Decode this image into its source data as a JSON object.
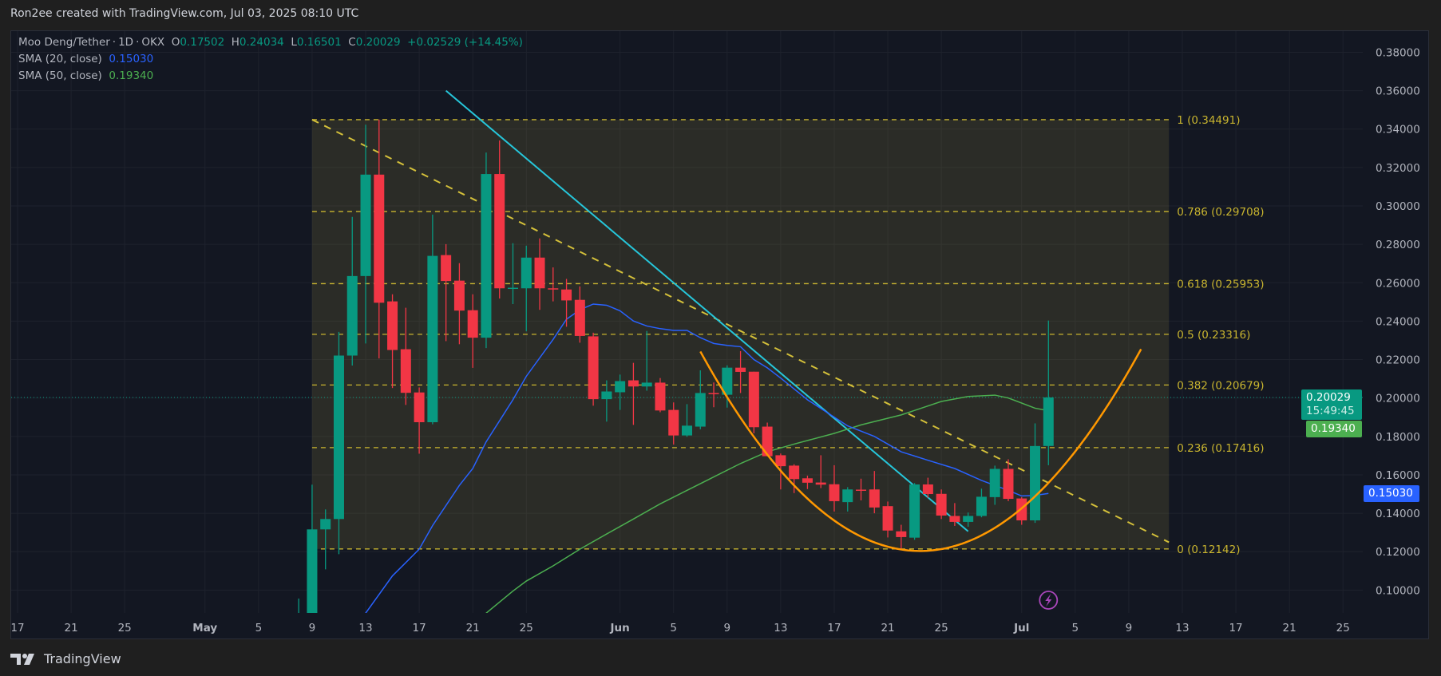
{
  "header": {
    "credit": "Ron2ee created with TradingView.com, Jul 03, 2025 08:10 UTC"
  },
  "legend": {
    "symbol": "Moo Deng/Tether",
    "interval": "1D",
    "exchange": "OKX",
    "open_label": "O",
    "open": "0.17502",
    "high_label": "H",
    "high": "0.24034",
    "low_label": "L",
    "low": "0.16501",
    "close_label": "C",
    "close": "0.20029",
    "change": "+0.02529 (+14.45%)",
    "sma20_label": "SMA (20, close)",
    "sma20_value": "0.15030",
    "sma50_label": "SMA (50, close)",
    "sma50_value": "0.19340"
  },
  "badges": {
    "last_price": "0.20029",
    "countdown": "15:49:45",
    "sma50": "0.19340",
    "sma20": "0.15030"
  },
  "branding": {
    "logo_text": "TradingView"
  },
  "colors": {
    "up": "#089981",
    "down": "#f23645",
    "sma20": "#2962ff",
    "sma50": "#4caf50",
    "trendline": "#26c6da",
    "curve": "#ff9800",
    "fib": "#c9b52f",
    "background": "#131722"
  },
  "icons": {
    "event": "lightning-icon",
    "logo": "tradingview-logo-icon"
  },
  "chart_data": {
    "type": "candlestick",
    "ylim": [
      0.0881,
      0.391
    ],
    "grid": true,
    "price_ticks": [
      "0.38000",
      "0.36000",
      "0.34000",
      "0.32000",
      "0.30000",
      "0.28000",
      "0.26000",
      "0.24000",
      "0.22000",
      "0.20000",
      "0.18000",
      "0.16000",
      "0.14000",
      "0.12000",
      "0.10000"
    ],
    "time_ticks": [
      {
        "label": "17",
        "date": "2025-04-17"
      },
      {
        "label": "21",
        "date": "2025-04-21"
      },
      {
        "label": "25",
        "date": "2025-04-25"
      },
      {
        "label": "May",
        "date": "2025-05-01",
        "month": true
      },
      {
        "label": "5",
        "date": "2025-05-05"
      },
      {
        "label": "9",
        "date": "2025-05-09"
      },
      {
        "label": "13",
        "date": "2025-05-13"
      },
      {
        "label": "17",
        "date": "2025-05-17"
      },
      {
        "label": "21",
        "date": "2025-05-21"
      },
      {
        "label": "25",
        "date": "2025-05-25"
      },
      {
        "label": "Jun",
        "date": "2025-06-01",
        "month": true
      },
      {
        "label": "5",
        "date": "2025-06-05"
      },
      {
        "label": "9",
        "date": "2025-06-09"
      },
      {
        "label": "13",
        "date": "2025-06-13"
      },
      {
        "label": "17",
        "date": "2025-06-17"
      },
      {
        "label": "21",
        "date": "2025-06-21"
      },
      {
        "label": "25",
        "date": "2025-06-25"
      },
      {
        "label": "Jul",
        "date": "2025-07-01",
        "month": true
      },
      {
        "label": "5",
        "date": "2025-07-05"
      },
      {
        "label": "9",
        "date": "2025-07-09"
      },
      {
        "label": "13",
        "date": "2025-07-13"
      },
      {
        "label": "17",
        "date": "2025-07-17"
      },
      {
        "label": "21",
        "date": "2025-07-21"
      },
      {
        "label": "25",
        "date": "2025-07-25"
      }
    ],
    "columns": [
      "date",
      "open",
      "high",
      "low",
      "close"
    ],
    "candles": [
      [
        "2025-05-08",
        0.075,
        0.0956,
        0.07,
        0.08
      ],
      [
        "2025-05-09",
        0.08,
        0.1549,
        0.075,
        0.1316
      ],
      [
        "2025-05-10",
        0.1316,
        0.142,
        0.1108,
        0.137
      ],
      [
        "2025-05-11",
        0.137,
        0.2344,
        0.1187,
        0.2221
      ],
      [
        "2025-05-12",
        0.2221,
        0.2943,
        0.2169,
        0.2635
      ],
      [
        "2025-05-13",
        0.2635,
        0.3423,
        0.2284,
        0.3163
      ],
      [
        "2025-05-14",
        0.3163,
        0.345,
        0.2206,
        0.2496
      ],
      [
        "2025-05-15",
        0.2503,
        0.254,
        0.2052,
        0.225
      ],
      [
        "2025-05-16",
        0.2254,
        0.247,
        0.1964,
        0.2027
      ],
      [
        "2025-05-17",
        0.2029,
        0.2055,
        0.171,
        0.1874
      ],
      [
        "2025-05-18",
        0.1874,
        0.2955,
        0.1863,
        0.274
      ],
      [
        "2025-05-19",
        0.2744,
        0.2801,
        0.2296,
        0.2609
      ],
      [
        "2025-05-20",
        0.2611,
        0.2702,
        0.228,
        0.2455
      ],
      [
        "2025-05-21",
        0.2457,
        0.254,
        0.2157,
        0.2314
      ],
      [
        "2025-05-22",
        0.2314,
        0.3278,
        0.226,
        0.3166
      ],
      [
        "2025-05-23",
        0.3166,
        0.3341,
        0.2518,
        0.2571
      ],
      [
        "2025-05-24",
        0.2571,
        0.2806,
        0.2489,
        0.2574
      ],
      [
        "2025-05-25",
        0.2571,
        0.2793,
        0.2347,
        0.2731
      ],
      [
        "2025-05-26",
        0.2731,
        0.2831,
        0.2459,
        0.2571
      ],
      [
        "2025-05-27",
        0.2571,
        0.268,
        0.2503,
        0.2565
      ],
      [
        "2025-05-28",
        0.2565,
        0.262,
        0.2371,
        0.2508
      ],
      [
        "2025-05-29",
        0.2511,
        0.2581,
        0.2288,
        0.2323
      ],
      [
        "2025-05-30",
        0.2321,
        0.234,
        0.196,
        0.1994
      ],
      [
        "2025-05-31",
        0.1994,
        0.2092,
        0.1877,
        0.2034
      ],
      [
        "2025-06-01",
        0.203,
        0.2122,
        0.1938,
        0.2088
      ],
      [
        "2025-06-02",
        0.2092,
        0.2183,
        0.186,
        0.206
      ],
      [
        "2025-06-03",
        0.206,
        0.2349,
        0.2038,
        0.208
      ],
      [
        "2025-06-04",
        0.208,
        0.2104,
        0.1926,
        0.1935
      ],
      [
        "2025-06-05",
        0.1938,
        0.1977,
        0.1758,
        0.1805
      ],
      [
        "2025-06-06",
        0.1805,
        0.1968,
        0.1798,
        0.1856
      ],
      [
        "2025-06-07",
        0.1851,
        0.2144,
        0.1837,
        0.2026
      ],
      [
        "2025-06-08",
        0.2026,
        0.2081,
        0.1952,
        0.2024
      ],
      [
        "2025-06-09",
        0.2017,
        0.217,
        0.195,
        0.2158
      ],
      [
        "2025-06-10",
        0.2158,
        0.2244,
        0.2026,
        0.2136
      ],
      [
        "2025-06-11",
        0.2137,
        0.2137,
        0.1816,
        0.1848
      ],
      [
        "2025-06-12",
        0.1851,
        0.1872,
        0.1697,
        0.1697
      ],
      [
        "2025-06-13",
        0.1702,
        0.1711,
        0.1524,
        0.1645
      ],
      [
        "2025-06-14",
        0.1648,
        0.1655,
        0.1505,
        0.1578
      ],
      [
        "2025-06-15",
        0.1582,
        0.1596,
        0.1526,
        0.1559
      ],
      [
        "2025-06-16",
        0.156,
        0.1702,
        0.1531,
        0.1549
      ],
      [
        "2025-06-17",
        0.1551,
        0.165,
        0.1409,
        0.1463
      ],
      [
        "2025-06-18",
        0.1458,
        0.1536,
        0.1409,
        0.1524
      ],
      [
        "2025-06-19",
        0.1523,
        0.158,
        0.1467,
        0.1522
      ],
      [
        "2025-06-20",
        0.1524,
        0.162,
        0.14,
        0.143
      ],
      [
        "2025-06-21",
        0.1437,
        0.1461,
        0.1274,
        0.131
      ],
      [
        "2025-06-22",
        0.1306,
        0.134,
        0.1213,
        0.1276
      ],
      [
        "2025-06-23",
        0.1273,
        0.1557,
        0.1262,
        0.155
      ],
      [
        "2025-06-24",
        0.155,
        0.1585,
        0.148,
        0.15
      ],
      [
        "2025-06-25",
        0.1501,
        0.1524,
        0.137,
        0.1388
      ],
      [
        "2025-06-26",
        0.1386,
        0.1453,
        0.1334,
        0.1355
      ],
      [
        "2025-06-27",
        0.1355,
        0.1404,
        0.133,
        0.1386
      ],
      [
        "2025-06-28",
        0.1386,
        0.1528,
        0.1379,
        0.1486
      ],
      [
        "2025-06-29",
        0.1484,
        0.1648,
        0.1444,
        0.1631
      ],
      [
        "2025-06-30",
        0.1631,
        0.1681,
        0.1463,
        0.1475
      ],
      [
        "2025-07-01",
        0.1477,
        0.1484,
        0.134,
        0.1363
      ],
      [
        "2025-07-02",
        0.1363,
        0.1868,
        0.135,
        0.175
      ],
      [
        "2025-07-03",
        0.17502,
        0.24034,
        0.16501,
        0.20029
      ]
    ],
    "sma20": [
      [
        "2025-05-12",
        0.078
      ],
      [
        "2025-05-13",
        0.088
      ],
      [
        "2025-05-15",
        0.1074
      ],
      [
        "2025-05-17",
        0.1213
      ],
      [
        "2025-05-18",
        0.1336
      ],
      [
        "2025-05-20",
        0.1545
      ],
      [
        "2025-05-21",
        0.1633
      ],
      [
        "2025-05-22",
        0.1772
      ],
      [
        "2025-05-24",
        0.1991
      ],
      [
        "2025-05-25",
        0.2113
      ],
      [
        "2025-05-27",
        0.2305
      ],
      [
        "2025-05-28",
        0.241
      ],
      [
        "2025-05-29",
        0.2459
      ],
      [
        "2025-05-30",
        0.2489
      ],
      [
        "2025-05-31",
        0.2483
      ],
      [
        "2025-06-01",
        0.2454
      ],
      [
        "2025-06-02",
        0.2401
      ],
      [
        "2025-06-03",
        0.2375
      ],
      [
        "2025-06-04",
        0.2361
      ],
      [
        "2025-06-05",
        0.2352
      ],
      [
        "2025-06-06",
        0.2352
      ],
      [
        "2025-06-07",
        0.2314
      ],
      [
        "2025-06-08",
        0.2284
      ],
      [
        "2025-06-09",
        0.2274
      ],
      [
        "2025-06-10",
        0.2267
      ],
      [
        "2025-06-11",
        0.22
      ],
      [
        "2025-06-12",
        0.2157
      ],
      [
        "2025-06-13",
        0.2104
      ],
      [
        "2025-06-15",
        0.1991
      ],
      [
        "2025-06-18",
        0.1855
      ],
      [
        "2025-06-20",
        0.18
      ],
      [
        "2025-06-22",
        0.172
      ],
      [
        "2025-06-24",
        0.1676
      ],
      [
        "2025-06-26",
        0.1633
      ],
      [
        "2025-06-28",
        0.1571
      ],
      [
        "2025-06-30",
        0.1519
      ],
      [
        "2025-07-01",
        0.149
      ],
      [
        "2025-07-02",
        0.1493
      ],
      [
        "2025-07-03",
        0.1503
      ]
    ],
    "sma50": [
      [
        "2025-05-21",
        0.08
      ],
      [
        "2025-05-22",
        0.088
      ],
      [
        "2025-05-24",
        0.0995
      ],
      [
        "2025-05-25",
        0.1047
      ],
      [
        "2025-05-27",
        0.1126
      ],
      [
        "2025-05-29",
        0.1213
      ],
      [
        "2025-05-31",
        0.1292
      ],
      [
        "2025-06-02",
        0.137
      ],
      [
        "2025-06-04",
        0.1449
      ],
      [
        "2025-06-06",
        0.1519
      ],
      [
        "2025-06-08",
        0.1589
      ],
      [
        "2025-06-10",
        0.1659
      ],
      [
        "2025-06-12",
        0.172
      ],
      [
        "2025-06-14",
        0.176
      ],
      [
        "2025-06-17",
        0.1816
      ],
      [
        "2025-06-19",
        0.186
      ],
      [
        "2025-06-22",
        0.1912
      ],
      [
        "2025-06-25",
        0.1982
      ],
      [
        "2025-06-27",
        0.2008
      ],
      [
        "2025-06-29",
        0.2015
      ],
      [
        "2025-06-30",
        0.2
      ],
      [
        "2025-07-02",
        0.1947
      ],
      [
        "2025-07-03",
        0.1934
      ]
    ],
    "fibonacci": {
      "start_date": "2025-05-09",
      "end_date": "2025-07-12",
      "levels": [
        {
          "ratio": "1",
          "price": 0.34491,
          "label": "1 (0.34491)"
        },
        {
          "ratio": "0.786",
          "price": 0.29708,
          "label": "0.786 (0.29708)"
        },
        {
          "ratio": "0.618",
          "price": 0.25953,
          "label": "0.618 (0.25953)"
        },
        {
          "ratio": "0.5",
          "price": 0.23316,
          "label": "0.5 (0.23316)"
        },
        {
          "ratio": "0.382",
          "price": 0.20679,
          "label": "0.382 (0.20679)"
        },
        {
          "ratio": "0.236",
          "price": 0.17416,
          "label": "0.236 (0.17416)"
        },
        {
          "ratio": "0",
          "price": 0.12142,
          "label": "0 (0.12142)"
        }
      ]
    },
    "drawings": {
      "dashed_trendline": [
        [
          "2025-05-09",
          0.34491
        ],
        [
          "2025-07-12",
          0.1249
        ]
      ],
      "descending_trendline": [
        [
          "2025-05-19",
          0.36
        ],
        [
          "2025-06-27",
          0.1306
        ]
      ],
      "rounded_bottom_curve": [
        [
          "2025-06-07",
          0.2242
        ],
        [
          "2025-06-24",
          0.1205
        ],
        [
          "2025-07-10",
          0.2265
        ]
      ]
    },
    "last_price": 0.20029,
    "event_marker_date": "2025-07-03"
  }
}
